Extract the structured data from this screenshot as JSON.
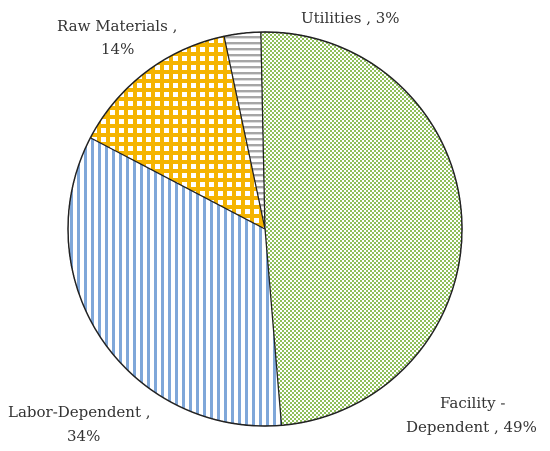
{
  "chart_data": {
    "type": "pie",
    "slices": [
      {
        "label": "Utilities",
        "value": 3,
        "display": "3%",
        "pattern": "horizontal-lines",
        "color": "#9e9e9e"
      },
      {
        "label": "Facility -Dependent",
        "value": 49,
        "display": "49%",
        "pattern": "checker-fine",
        "color": "#8fbf5a"
      },
      {
        "label": "Labor-Dependent",
        "value": 34,
        "display": "34%",
        "pattern": "vertical-lines",
        "color": "#7fa7d9"
      },
      {
        "label": "Raw Materials",
        "value": 14,
        "display": "14%",
        "pattern": "grid",
        "color": "#f5b400"
      }
    ],
    "labels": {
      "utilities": "Utilities , 3%",
      "facility_line1": "Facility -",
      "facility_line2": "Dependent , 49%",
      "labor_line1": "Labor-Dependent ,",
      "labor_line2": "34%",
      "raw_line1": "Raw Materials ,",
      "raw_line2": "14%"
    },
    "legend": "none",
    "start_angle_deg": 0,
    "direction": "clockwise"
  }
}
